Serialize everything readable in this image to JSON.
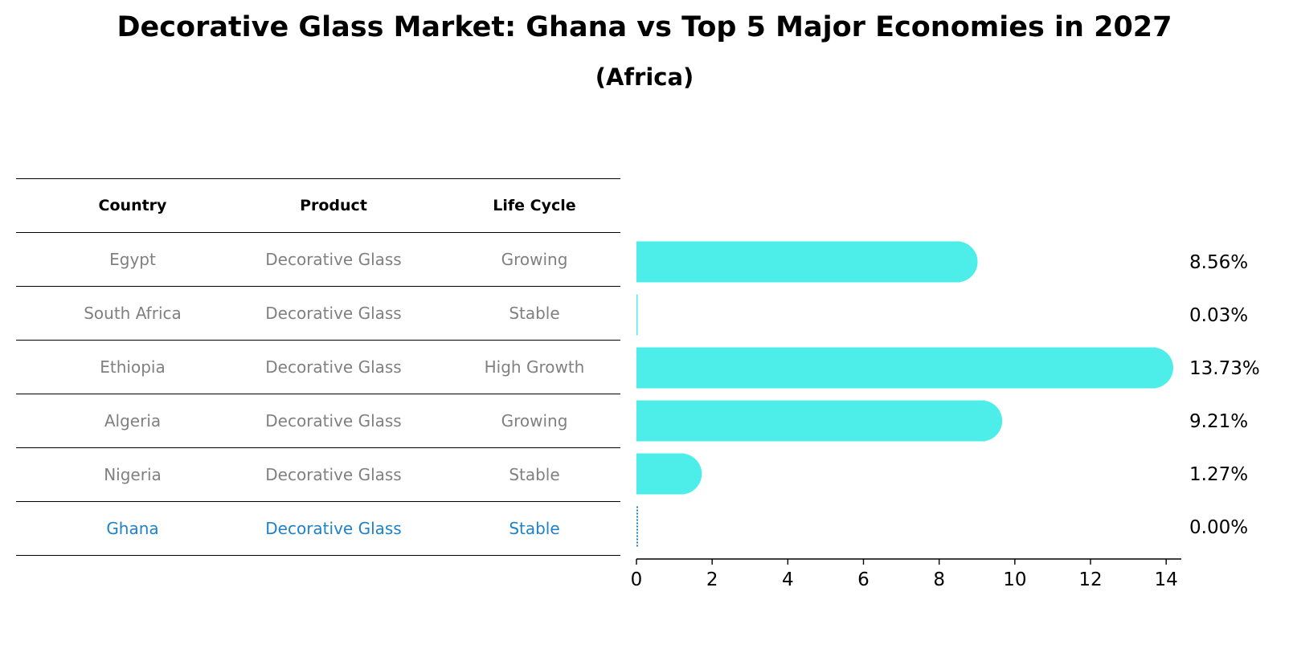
{
  "title": "Decorative Glass Market: Ghana vs Top 5 Major Economies in 2027",
  "subtitle": "(Africa)",
  "table": {
    "headers": [
      "Country",
      "Product",
      "Life Cycle"
    ],
    "rows": [
      {
        "country": "Egypt",
        "product": "Decorative Glass",
        "life_cycle": "Growing"
      },
      {
        "country": "South Africa",
        "product": "Decorative Glass",
        "life_cycle": "Stable"
      },
      {
        "country": "Ethiopia",
        "product": "Decorative Glass",
        "life_cycle": "High Growth"
      },
      {
        "country": "Algeria",
        "product": "Decorative Glass",
        "life_cycle": "Growing"
      },
      {
        "country": "Nigeria",
        "product": "Decorative Glass",
        "life_cycle": "Stable"
      },
      {
        "country": "Ghana",
        "product": "Decorative Glass",
        "life_cycle": "Stable"
      }
    ]
  },
  "colors": {
    "bar": "#4deeea",
    "highlight": "#1f82c8",
    "muted_text": "#808080"
  },
  "chart_data": {
    "type": "bar",
    "orientation": "horizontal",
    "categories": [
      "Egypt",
      "South Africa",
      "Ethiopia",
      "Algeria",
      "Nigeria",
      "Ghana"
    ],
    "values": [
      8.56,
      0.03,
      13.73,
      9.21,
      1.27,
      0.0
    ],
    "value_labels": [
      "8.56%",
      "0.03%",
      "13.73%",
      "9.21%",
      "1.27%",
      "0.00%"
    ],
    "highlight_category": "Ghana",
    "xlim": [
      0,
      14.4
    ],
    "xticks": [
      0,
      2,
      4,
      6,
      8,
      10,
      12,
      14
    ],
    "xlabel": "",
    "ylabel": ""
  }
}
